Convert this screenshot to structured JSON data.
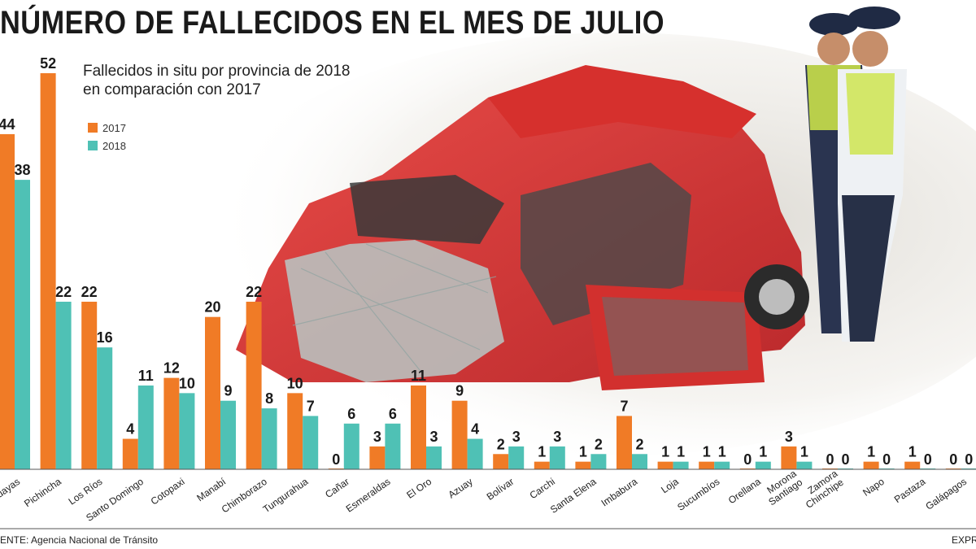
{
  "header": {
    "title": "NÚMERO DE FALLECIDOS EN EL MES DE JULIO",
    "subtitle_line1": "Fallecidos in situ por provincia de 2018",
    "subtitle_line2": "en comparación con 2017"
  },
  "footer": {
    "source": "ENTE: Agencia Nacional de Tránsito",
    "brand": "EXPRE"
  },
  "colors": {
    "series_2017": "#f07b26",
    "series_2018": "#4fc1b5"
  },
  "chart_data": {
    "type": "bar",
    "title": "NÚMERO DE FALLECIDOS EN EL MES DE JULIO",
    "subtitle": "Fallecidos in situ por provincia de 2018 en comparación con 2017",
    "xlabel": "",
    "ylabel": "",
    "ylim": [
      0,
      52
    ],
    "grid": false,
    "legend_position": "top-left",
    "categories": [
      "Guayas",
      "Pichincha",
      "Los Ríos",
      "Santo Domingo",
      "Cotopaxi",
      "Manabí",
      "Chimborazo",
      "Tungurahua",
      "Cañar",
      "Esmeraldas",
      "El Oro",
      "Azuay",
      "Bolívar",
      "Carchi",
      "Santa Elena",
      "Imbabura",
      "Loja",
      "Sucumbíos",
      "Orellana",
      "Morona Santiago",
      "Zamora Chinchipe",
      "Napo",
      "Pastaza",
      "Galápagos"
    ],
    "tick_labels": [
      [
        "uayas"
      ],
      [
        "Pichincha"
      ],
      [
        "Los Ríos"
      ],
      [
        "Santo Domingo"
      ],
      [
        "Cotopaxi"
      ],
      [
        "Manabí"
      ],
      [
        "Chimborazo"
      ],
      [
        "Tungurahua"
      ],
      [
        "Cañar"
      ],
      [
        "Esmeraldas"
      ],
      [
        "El Oro"
      ],
      [
        "Azuay"
      ],
      [
        "Bolívar"
      ],
      [
        "Carchi"
      ],
      [
        "Santa Elena"
      ],
      [
        "Imbabura"
      ],
      [
        "Loja"
      ],
      [
        "Sucumbíos"
      ],
      [
        "Orellana"
      ],
      [
        "Morona",
        "Santiago"
      ],
      [
        "Zamora",
        "Chinchipe"
      ],
      [
        "Napo"
      ],
      [
        "Pastaza"
      ],
      [
        "Galápagos"
      ]
    ],
    "series": [
      {
        "name": "2017",
        "values": [
          44,
          52,
          22,
          4,
          12,
          20,
          22,
          10,
          0,
          3,
          11,
          9,
          2,
          1,
          1,
          7,
          1,
          1,
          0,
          3,
          0,
          1,
          1,
          0
        ]
      },
      {
        "name": "2018",
        "values": [
          38,
          22,
          16,
          11,
          10,
          9,
          8,
          7,
          6,
          6,
          3,
          4,
          3,
          3,
          2,
          2,
          1,
          1,
          1,
          1,
          0,
          0,
          0,
          0
        ]
      }
    ]
  }
}
